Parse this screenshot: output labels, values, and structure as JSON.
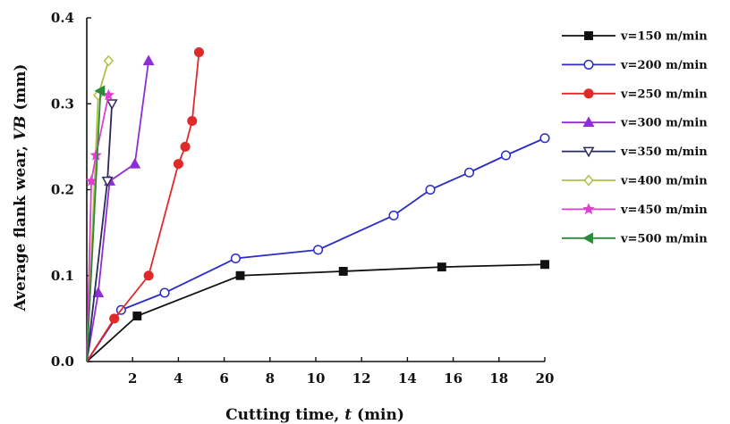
{
  "chart_data": {
    "type": "line",
    "xlabel_prefix": "Cutting time, ",
    "xlabel_var": "t",
    "xlabel_suffix": " (min)",
    "ylabel_prefix": "Average flank wear, ",
    "ylabel_var": "VB",
    "ylabel_suffix": " (mm)",
    "xlim": [
      0,
      20
    ],
    "ylim": [
      0,
      0.4
    ],
    "xticks": [
      2,
      4,
      6,
      8,
      10,
      12,
      14,
      16,
      18,
      20
    ],
    "xtick_labels": [
      "2",
      "4",
      "6",
      "8",
      "10",
      "12",
      "14",
      "16",
      "18",
      "20"
    ],
    "yticks": [
      0,
      0.1,
      0.2,
      0.3,
      0.4
    ],
    "ytick_labels": [
      "0.0",
      "0.1",
      "0.2",
      "0.3",
      "0.4"
    ],
    "grid": false,
    "legend_position": "right",
    "series": [
      {
        "name": "v=150 m/min",
        "color": "#111111",
        "marker": "square-filled",
        "x": [
          0,
          2.2,
          6.7,
          11.2,
          15.5,
          20
        ],
        "y": [
          0,
          0.053,
          0.1,
          0.105,
          0.11,
          0.113
        ],
        "marker_count": 5
      },
      {
        "name": "v=200 m/min",
        "color": "#2b2bc8",
        "marker": "circle-open",
        "x": [
          0,
          1.5,
          3.4,
          6.5,
          10.1,
          13.4,
          15.0,
          16.7,
          18.3,
          20
        ],
        "y": [
          0,
          0.06,
          0.08,
          0.12,
          0.13,
          0.17,
          0.2,
          0.22,
          0.24,
          0.26
        ]
      },
      {
        "name": "v=250 m/min",
        "color": "#e02a2a",
        "marker": "circle-filled",
        "x": [
          0,
          1.2,
          2.7,
          4.0,
          4.3,
          4.6,
          4.9
        ],
        "y": [
          0,
          0.05,
          0.1,
          0.23,
          0.25,
          0.28,
          0.36
        ]
      },
      {
        "name": "v=300 m/min",
        "color": "#8e2fd6",
        "marker": "triangle-up-filled",
        "x": [
          0,
          0.5,
          1.0,
          2.1,
          2.7
        ],
        "y": [
          0,
          0.08,
          0.21,
          0.23,
          0.35
        ]
      },
      {
        "name": "v=350 m/min",
        "color": "#2a2a5a",
        "marker": "triangle-down-open",
        "x": [
          0,
          0.9,
          1.1
        ],
        "y": [
          0,
          0.21,
          0.3
        ]
      },
      {
        "name": "v=400 m/min",
        "color": "#b0c040",
        "marker": "diamond-open",
        "x": [
          0,
          0.5,
          0.95
        ],
        "y": [
          0,
          0.31,
          0.35
        ]
      },
      {
        "name": "v=450 m/min",
        "color": "#e040d0",
        "marker": "star-filled",
        "x": [
          0,
          0.2,
          0.4,
          0.95
        ],
        "y": [
          0,
          0.21,
          0.24,
          0.31
        ]
      },
      {
        "name": "v=500 m/min",
        "color": "#2a8a3a",
        "marker": "triangle-left-filled",
        "x": [
          0,
          0.6
        ],
        "y": [
          0,
          0.315
        ]
      }
    ]
  }
}
